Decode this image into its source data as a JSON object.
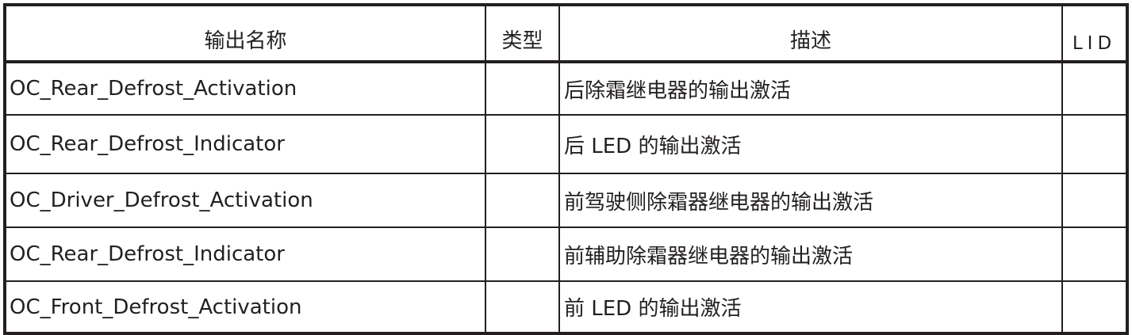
{
  "table": {
    "headers": [
      "输出名称",
      "类型",
      "描述",
      "LID"
    ],
    "rows": [
      {
        "name": "OC_Rear_Defrost_Activation",
        "type": "",
        "desc": "后除霜继电器的输出激活",
        "lid": ""
      },
      {
        "name": "OC_Rear_Defrost_Indicator",
        "type": "",
        "desc": "后 LED 的输出激活",
        "lid": ""
      },
      {
        "name": "OC_Driver_Defrost_Activation",
        "type": "",
        "desc": "前驾驶侧除霜器继电器的输出激活",
        "lid": ""
      },
      {
        "name": "OC_Rear_Defrost_Indicator",
        "type": "",
        "desc": "前辅助除霜器继电器的输出激活",
        "lid": ""
      },
      {
        "name": "OC_Front_Defrost_Activation",
        "type": "",
        "desc": "前 LED 的输出激活",
        "lid": ""
      }
    ]
  }
}
